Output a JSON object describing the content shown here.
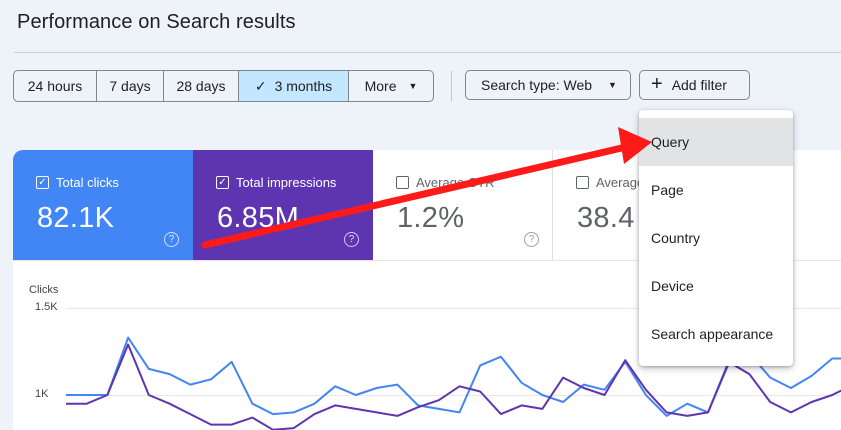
{
  "page": {
    "title": "Performance on Search results"
  },
  "date_range": {
    "options": [
      {
        "label": "24 hours",
        "active": false
      },
      {
        "label": "7 days",
        "active": false
      },
      {
        "label": "28 days",
        "active": false
      },
      {
        "label": "3 months",
        "active": true
      },
      {
        "label": "More",
        "active": false
      }
    ]
  },
  "filters": {
    "search_type_label": "Search type: Web",
    "add_filter_label": "Add filter"
  },
  "metrics": {
    "clicks": {
      "label": "Total clicks",
      "value": "82.1K",
      "checked": true,
      "color": "#4285f4"
    },
    "impressions": {
      "label": "Total impressions",
      "value": "6.85M",
      "checked": true,
      "color": "#5e35b1"
    },
    "ctr": {
      "label": "Average CTR",
      "value": "1.2%",
      "checked": false
    },
    "position": {
      "label": "Average position",
      "value": "38.4",
      "checked": false
    }
  },
  "chart": {
    "y_axis_label": "Clicks",
    "ticks": [
      "1.5K",
      "1K"
    ]
  },
  "filter_menu": {
    "items": [
      "Query",
      "Page",
      "Country",
      "Device",
      "Search appearance"
    ],
    "highlighted": "Query"
  },
  "annotation": {
    "color": "#ff1a1a",
    "points_to": "Query"
  },
  "chart_data": {
    "type": "line",
    "ylabel": "Clicks",
    "ylim": [
      0,
      1500
    ],
    "series": [
      {
        "name": "Total clicks",
        "values": [
          1000,
          1000,
          1000,
          1330,
          1150,
          1120,
          1060,
          1090,
          1190,
          950,
          890,
          900,
          950,
          1050,
          1000,
          1040,
          1060,
          940,
          920,
          900,
          1170,
          1220,
          1070,
          1000,
          960,
          1060,
          1030,
          1190,
          1000,
          880,
          950,
          900,
          1180,
          1240,
          1100,
          1040,
          1110,
          1210,
          1210
        ]
      },
      {
        "name": "Total impressions",
        "values": [
          950,
          950,
          1000,
          1290,
          1000,
          950,
          890,
          830,
          830,
          870,
          800,
          810,
          890,
          940,
          920,
          900,
          880,
          930,
          970,
          1050,
          1020,
          890,
          940,
          920,
          1100,
          1040,
          1000,
          1200,
          1030,
          900,
          880,
          900,
          1190,
          1120,
          960,
          900,
          960,
          1000,
          1060
        ]
      }
    ]
  }
}
